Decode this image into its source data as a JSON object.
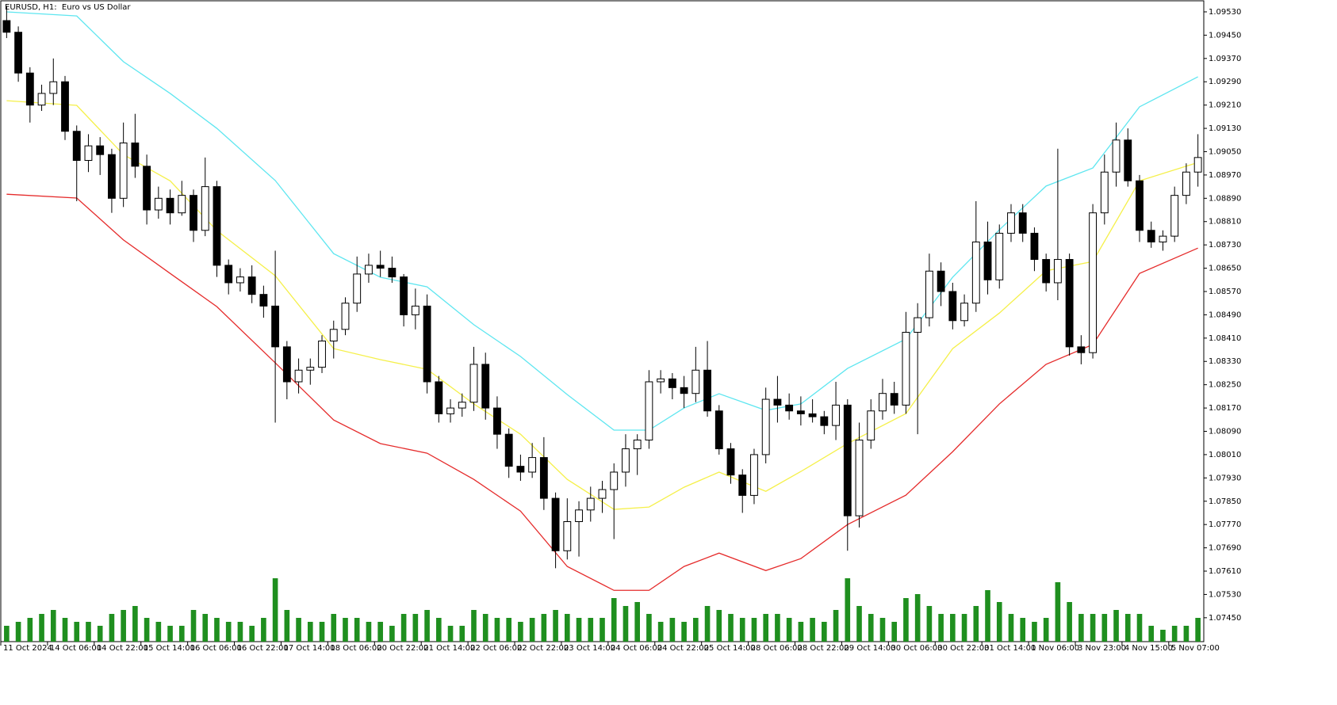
{
  "chart_data": {
    "type": "candlestick",
    "title": "EURUSD, H1:  Euro vs US Dollar",
    "categories": [
      "11 Oct 2024",
      null,
      null,
      null,
      "14 Oct 06:00",
      null,
      null,
      null,
      "14 Oct 22:00",
      null,
      null,
      null,
      "15 Oct 14:00",
      null,
      null,
      null,
      "16 Oct 06:00",
      null,
      null,
      null,
      "16 Oct 22:00",
      null,
      null,
      null,
      "17 Oct 14:00",
      null,
      null,
      null,
      "18 Oct 06:00",
      null,
      null,
      null,
      "20 Oct 22:00",
      null,
      null,
      null,
      "21 Oct 14:00",
      null,
      null,
      null,
      "22 Oct 06:00",
      null,
      null,
      null,
      "22 Oct 22:00",
      null,
      null,
      null,
      "23 Oct 14:00",
      null,
      null,
      null,
      "24 Oct 06:00",
      null,
      null,
      null,
      "24 Oct 22:00",
      null,
      null,
      null,
      "25 Oct 14:00",
      null,
      null,
      null,
      "28 Oct 06:00",
      null,
      null,
      null,
      "28 Oct 22:00",
      null,
      null,
      null,
      "29 Oct 14:00",
      null,
      null,
      null,
      "30 Oct 06:00",
      null,
      null,
      null,
      "30 Oct 22:00",
      null,
      null,
      null,
      "31 Oct 14:00",
      null,
      null,
      null,
      "1 Nov 06:00",
      null,
      null,
      null,
      "3 Nov 23:00",
      null,
      null,
      null,
      "4 Nov 15:00",
      null,
      null,
      null,
      "5 Nov 07:00",
      null,
      null
    ],
    "open": [
      1.095,
      1.0946,
      1.0932,
      1.0921,
      1.0925,
      1.0929,
      1.0912,
      1.0902,
      1.0907,
      1.0904,
      1.0889,
      1.0908,
      1.09,
      1.0885,
      1.0889,
      1.0884,
      1.089,
      1.0878,
      1.0893,
      1.0866,
      1.086,
      1.0862,
      1.0856,
      1.0852,
      1.0838,
      1.0826,
      1.083,
      1.0831,
      1.084,
      1.0844,
      1.0853,
      1.0863,
      1.0866,
      1.0865,
      1.0862,
      1.0849,
      1.0852,
      1.0826,
      1.0815,
      1.0817,
      1.0819,
      1.0832,
      1.0817,
      1.0808,
      1.0797,
      1.0795,
      1.08,
      1.0786,
      1.0768,
      1.0778,
      1.0782,
      1.0786,
      1.0789,
      1.0795,
      1.0803,
      1.0806,
      1.0826,
      1.0827,
      1.0824,
      1.0822,
      1.083,
      1.0816,
      1.0803,
      1.0794,
      1.0787,
      1.0801,
      1.082,
      1.0818,
      1.0816,
      1.0815,
      1.0814,
      1.0811,
      1.0818,
      1.078,
      1.0806,
      1.0816,
      1.0822,
      1.0818,
      1.0843,
      1.0848,
      1.0864,
      1.0857,
      1.0847,
      1.0853,
      1.0874,
      1.0861,
      1.0877,
      1.0884,
      1.0877,
      1.0868,
      1.086,
      1.0868,
      1.0838,
      1.0836,
      1.0884,
      1.0898,
      1.0909,
      1.0895,
      1.0878,
      1.0874,
      1.0876,
      1.089,
      1.0898
    ],
    "high": [
      1.0955,
      1.0948,
      1.0934,
      1.0928,
      1.0937,
      1.0931,
      1.0914,
      1.0911,
      1.091,
      1.0906,
      1.0915,
      1.0918,
      1.0904,
      1.0893,
      1.0892,
      1.0895,
      1.0892,
      1.0903,
      1.0895,
      1.0868,
      1.0865,
      1.0866,
      1.0859,
      1.0871,
      1.084,
      1.0834,
      1.0834,
      1.0842,
      1.0847,
      1.0855,
      1.0869,
      1.087,
      1.0871,
      1.0869,
      1.0863,
      1.0858,
      1.0856,
      1.0828,
      1.082,
      1.0822,
      1.0838,
      1.0836,
      1.0821,
      1.081,
      1.0801,
      1.0805,
      1.0807,
      1.0788,
      1.0786,
      1.0785,
      1.079,
      1.0792,
      1.0798,
      1.0808,
      1.0808,
      1.083,
      1.083,
      1.0829,
      1.0828,
      1.0838,
      1.084,
      1.0818,
      1.0805,
      1.0796,
      1.0803,
      1.0824,
      1.0828,
      1.0822,
      1.0821,
      1.082,
      1.0816,
      1.0826,
      1.082,
      1.0812,
      1.082,
      1.0827,
      1.0826,
      1.085,
      1.0853,
      1.087,
      1.0867,
      1.086,
      1.0856,
      1.0888,
      1.0881,
      1.088,
      1.0887,
      1.0887,
      1.0879,
      1.087,
      1.0906,
      1.087,
      1.0842,
      1.0887,
      1.0904,
      1.0915,
      1.0913,
      1.0897,
      1.0881,
      1.0878,
      1.0893,
      1.0901,
      1.0911
    ],
    "low": [
      1.0944,
      1.0929,
      1.0915,
      1.0919,
      1.0921,
      1.0909,
      1.0888,
      1.0898,
      1.0897,
      1.0884,
      1.0886,
      1.0896,
      1.088,
      1.0882,
      1.088,
      1.0883,
      1.0874,
      1.0876,
      1.0862,
      1.0856,
      1.0857,
      1.0853,
      1.0848,
      1.0812,
      1.082,
      1.0822,
      1.0825,
      1.0829,
      1.0834,
      1.0842,
      1.085,
      1.086,
      1.0862,
      1.086,
      1.0845,
      1.0844,
      1.0822,
      1.0812,
      1.0812,
      1.0814,
      1.0816,
      1.0813,
      1.0803,
      1.0793,
      1.0792,
      1.0793,
      1.0782,
      1.0762,
      1.0765,
      1.0766,
      1.0778,
      1.0781,
      1.0772,
      1.079,
      1.0794,
      1.0803,
      1.0822,
      1.082,
      1.0817,
      1.0819,
      1.0814,
      1.0801,
      1.0791,
      1.0781,
      1.0784,
      1.0798,
      1.0812,
      1.0813,
      1.0811,
      1.0812,
      1.0808,
      1.0806,
      1.0768,
      1.0776,
      1.0803,
      1.0813,
      1.0815,
      1.0815,
      1.0808,
      1.0845,
      1.0852,
      1.0844,
      1.0845,
      1.085,
      1.0856,
      1.0858,
      1.0874,
      1.0874,
      1.0864,
      1.0857,
      1.0854,
      1.0835,
      1.0832,
      1.0834,
      1.088,
      1.0893,
      1.0893,
      1.0874,
      1.0872,
      1.0871,
      1.0874,
      1.0887,
      1.0893
    ],
    "close": [
      1.0946,
      1.0932,
      1.0921,
      1.0925,
      1.0929,
      1.0912,
      1.0902,
      1.0907,
      1.0904,
      1.0889,
      1.0908,
      1.09,
      1.0885,
      1.0889,
      1.0884,
      1.089,
      1.0878,
      1.0893,
      1.0866,
      1.086,
      1.0862,
      1.0856,
      1.0852,
      1.0838,
      1.0826,
      1.083,
      1.0831,
      1.084,
      1.0844,
      1.0853,
      1.0863,
      1.0866,
      1.0865,
      1.0862,
      1.0849,
      1.0852,
      1.0826,
      1.0815,
      1.0817,
      1.0819,
      1.0832,
      1.0817,
      1.0808,
      1.0797,
      1.0795,
      1.08,
      1.0786,
      1.0768,
      1.0778,
      1.0782,
      1.0786,
      1.0789,
      1.0795,
      1.0803,
      1.0806,
      1.0826,
      1.0827,
      1.0824,
      1.0822,
      1.083,
      1.0816,
      1.0803,
      1.0794,
      1.0787,
      1.0801,
      1.082,
      1.0818,
      1.0816,
      1.0815,
      1.0814,
      1.0811,
      1.0818,
      1.078,
      1.0806,
      1.0816,
      1.0822,
      1.0818,
      1.0843,
      1.0848,
      1.0864,
      1.0857,
      1.0847,
      1.0853,
      1.0874,
      1.0861,
      1.0877,
      1.0884,
      1.0877,
      1.0868,
      1.086,
      1.0868,
      1.0838,
      1.0836,
      1.0884,
      1.0898,
      1.0909,
      1.0895,
      1.0878,
      1.0874,
      1.0876,
      1.089,
      1.0898,
      1.0903
    ],
    "volume": [
      2000,
      2500,
      3000,
      3500,
      4000,
      3000,
      2500,
      2500,
      2000,
      3500,
      4000,
      4500,
      3000,
      2500,
      2000,
      2000,
      4000,
      3500,
      3000,
      2500,
      2500,
      2000,
      3000,
      8000,
      4000,
      3000,
      2500,
      2500,
      3500,
      3000,
      3000,
      2500,
      2500,
      2000,
      3500,
      3500,
      4000,
      3000,
      2000,
      2000,
      4000,
      3500,
      3000,
      3000,
      2500,
      3000,
      3500,
      4000,
      3500,
      3000,
      3000,
      3000,
      5500,
      4500,
      5000,
      3500,
      2500,
      3000,
      2500,
      3000,
      4500,
      4000,
      3500,
      3000,
      3000,
      3500,
      3500,
      3000,
      2500,
      3000,
      2500,
      4000,
      8000,
      4500,
      3500,
      3000,
      2500,
      5500,
      6000,
      4500,
      3500,
      3500,
      3500,
      4500,
      6500,
      5000,
      3500,
      3000,
      2500,
      3000,
      7500,
      5000,
      3500,
      3500,
      3500,
      4000,
      3500,
      3500,
      2000,
      1500,
      2000,
      2000,
      3000
    ],
    "volume_ylim": [
      0,
      10000
    ],
    "volume_color": "#1f8f1f",
    "up_color": "#ffffff",
    "down_color": "#000000",
    "candle_stroke": "#000000",
    "bands_x": [
      0,
      6,
      10,
      14,
      18,
      23,
      28,
      32,
      36,
      40,
      44,
      48,
      52,
      55,
      58,
      61,
      65,
      68,
      72,
      77,
      81,
      85,
      89,
      93,
      97,
      102
    ],
    "bands": [
      {
        "color": "#5ee6f0",
        "values": [
          1.0953,
          1.09516,
          1.09359,
          1.0925,
          1.0913,
          1.08951,
          1.087,
          1.08619,
          1.08586,
          1.08456,
          1.08347,
          1.08216,
          1.08094,
          1.08094,
          1.0817,
          1.08219,
          1.08162,
          1.08184,
          1.08306,
          1.08407,
          1.08619,
          1.08782,
          1.08932,
          1.08994,
          1.09204,
          1.09307
        ]
      },
      {
        "color": "#f5f04a",
        "values": [
          1.09225,
          1.09209,
          1.0904,
          1.0895,
          1.08779,
          1.08624,
          1.08374,
          1.08336,
          1.08303,
          1.08184,
          1.0808,
          1.07925,
          1.07822,
          1.0783,
          1.07898,
          1.0795,
          1.07884,
          1.07952,
          1.08048,
          1.08151,
          1.08374,
          1.08496,
          1.08641,
          1.08673,
          1.0895,
          1.09013
        ]
      },
      {
        "color": "#e52b2b",
        "values": [
          1.08904,
          1.08891,
          1.08747,
          1.08632,
          1.08518,
          1.08325,
          1.08129,
          1.08048,
          1.08015,
          1.07925,
          1.07816,
          1.07626,
          1.07544,
          1.07544,
          1.07626,
          1.07672,
          1.07612,
          1.07653,
          1.0777,
          1.07871,
          1.0802,
          1.08184,
          1.0832,
          1.08388,
          1.08632,
          1.08719
        ]
      }
    ],
    "ylim": [
      1.07368,
      1.09568
    ],
    "yticks": [
      {
        "value": 1.0953,
        "label": "1.09530"
      },
      {
        "value": 1.0945,
        "label": "1.09450"
      },
      {
        "value": 1.0937,
        "label": "1.09370"
      },
      {
        "value": 1.0929,
        "label": "1.09290"
      },
      {
        "value": 1.0921,
        "label": "1.09210"
      },
      {
        "value": 1.0913,
        "label": "1.09130"
      },
      {
        "value": 1.0905,
        "label": "1.09050"
      },
      {
        "value": 1.0897,
        "label": "1.08970"
      },
      {
        "value": 1.0889,
        "label": "1.08890"
      },
      {
        "value": 1.0881,
        "label": "1.08810"
      },
      {
        "value": 1.0873,
        "label": "1.08730"
      },
      {
        "value": 1.0865,
        "label": "1.08650"
      },
      {
        "value": 1.0857,
        "label": "1.08570"
      },
      {
        "value": 1.0849,
        "label": "1.08490"
      },
      {
        "value": 1.0841,
        "label": "1.08410"
      },
      {
        "value": 1.0833,
        "label": "1.08330"
      },
      {
        "value": 1.0825,
        "label": "1.08250"
      },
      {
        "value": 1.0817,
        "label": "1.08170"
      },
      {
        "value": 1.0809,
        "label": "1.08090"
      },
      {
        "value": 1.0801,
        "label": "1.08010"
      },
      {
        "value": 1.0793,
        "label": "1.07930"
      },
      {
        "value": 1.0785,
        "label": "1.07850"
      },
      {
        "value": 1.0777,
        "label": "1.07770"
      },
      {
        "value": 1.0769,
        "label": "1.07690"
      },
      {
        "value": 1.0761,
        "label": "1.07610"
      },
      {
        "value": 1.0753,
        "label": "1.07530"
      },
      {
        "value": 1.0745,
        "label": "1.07450"
      }
    ]
  }
}
